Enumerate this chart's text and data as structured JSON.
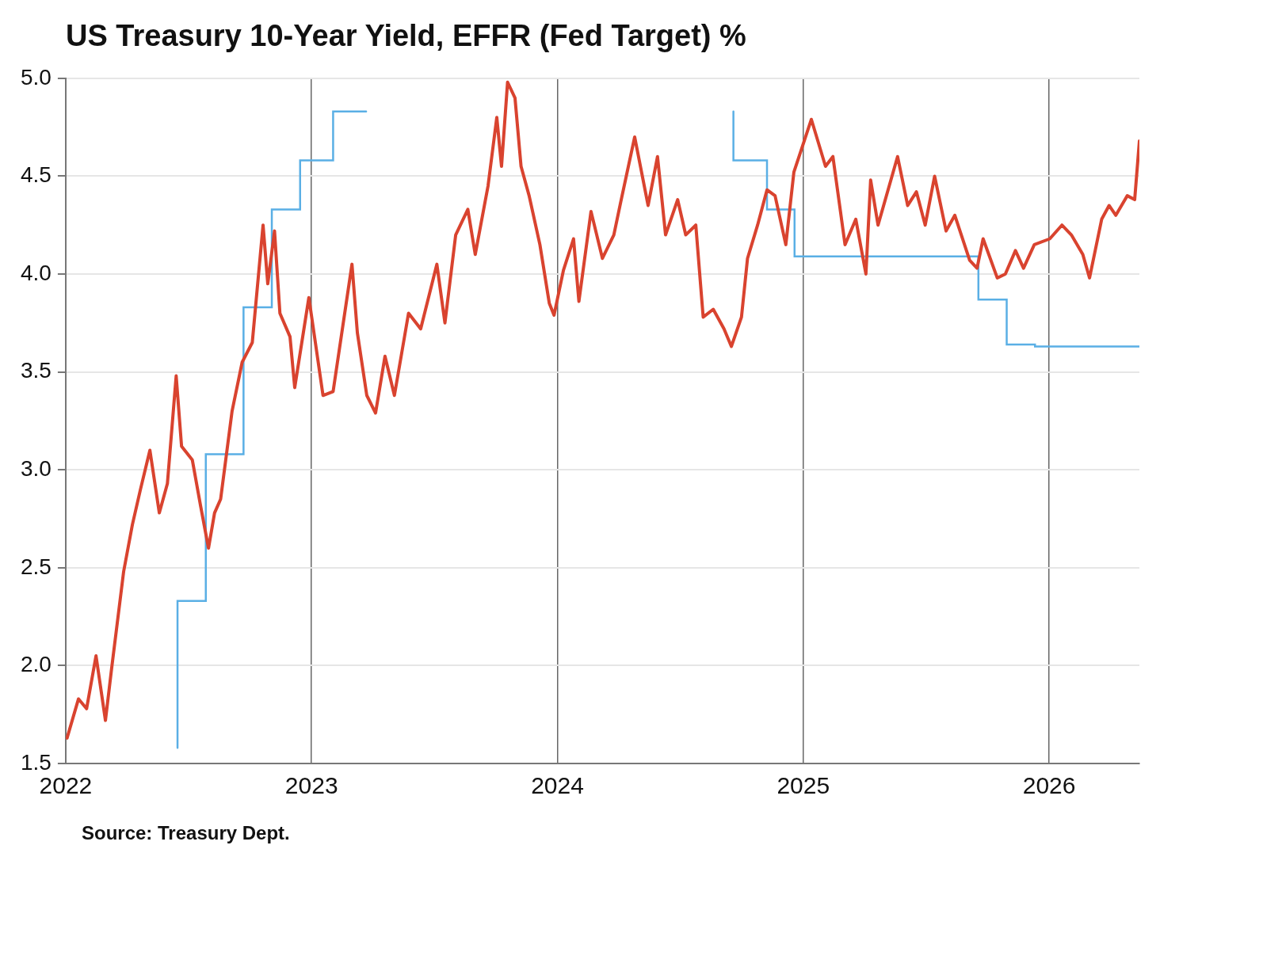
{
  "chart_data": {
    "type": "line",
    "title": "US Treasury 10-Year Yield, EFFR (Fed Target) %",
    "xlim": [
      "2022",
      "2026-05-15"
    ],
    "xticks": [
      "2022",
      "2023",
      "2024",
      "2025",
      "2026"
    ],
    "ylim": [
      1.5,
      5.0
    ],
    "yticks": [
      {
        "value": 1.5,
        "label": "1.5"
      },
      {
        "value": 2,
        "label": "2.0"
      },
      {
        "value": 2.5,
        "label": "2.5"
      },
      {
        "value": 3,
        "label": "3.0"
      },
      {
        "value": 3.5,
        "label": "3.5"
      },
      {
        "value": 4,
        "label": "4.0"
      },
      {
        "value": 4.5,
        "label": "4.5"
      },
      {
        "value": 5,
        "label": "5.0"
      }
    ],
    "grid": true,
    "legend": false,
    "marker": "none",
    "line_style": "solid",
    "annotations": [
      "Source: Treasury Dept."
    ],
    "series": [
      {
        "type": "line",
        "color": "#d9432f",
        "x": [
          "2022-01-03",
          "2022-01-20",
          "2022-02-01",
          "2022-02-15",
          "2022-03-01",
          "2022-03-10",
          "2022-03-28",
          "2022-04-10",
          "2022-04-22",
          "2022-05-06",
          "2022-05-20",
          "2022-06-01",
          "2022-06-14",
          "2022-06-22",
          "2022-07-08",
          "2022-07-20",
          "2022-08-01",
          "2022-08-10",
          "2022-08-19",
          "2022-09-05",
          "2022-09-20",
          "2022-10-05",
          "2022-10-21",
          "2022-10-28",
          "2022-11-07",
          "2022-11-15",
          "2022-11-30",
          "2022-12-07",
          "2022-12-28",
          "2023-01-18",
          "2023-02-02",
          "2023-03-02",
          "2023-03-10",
          "2023-03-24",
          "2023-04-06",
          "2023-04-20",
          "2023-05-04",
          "2023-05-25",
          "2023-06-12",
          "2023-07-06",
          "2023-07-18",
          "2023-08-03",
          "2023-08-21",
          "2023-09-01",
          "2023-09-20",
          "2023-10-03",
          "2023-10-10",
          "2023-10-19",
          "2023-10-30",
          "2023-11-08",
          "2023-11-20",
          "2023-12-06",
          "2023-12-20",
          "2023-12-27",
          "2024-01-10",
          "2024-01-25",
          "2024-02-02",
          "2024-02-20",
          "2024-03-08",
          "2024-03-25",
          "2024-04-05",
          "2024-04-25",
          "2024-05-15",
          "2024-05-29",
          "2024-06-10",
          "2024-06-28",
          "2024-07-10",
          "2024-07-25",
          "2024-08-05",
          "2024-08-20",
          "2024-09-05",
          "2024-09-16",
          "2024-10-01",
          "2024-10-10",
          "2024-10-25",
          "2024-11-08",
          "2024-11-20",
          "2024-12-06",
          "2024-12-18",
          "2025-01-13",
          "2025-02-03",
          "2025-02-14",
          "2025-03-04",
          "2025-03-20",
          "2025-04-04",
          "2025-04-11",
          "2025-04-22",
          "2025-05-21",
          "2025-06-05",
          "2025-06-18",
          "2025-07-01",
          "2025-07-15",
          "2025-08-01",
          "2025-08-14",
          "2025-09-05",
          "2025-09-16",
          "2025-09-25",
          "2025-10-16",
          "2025-10-28",
          "2025-11-12",
          "2025-11-24",
          "2025-12-10",
          "2026-01-02",
          "2026-01-20",
          "2026-02-03",
          "2026-02-20",
          "2026-03-02",
          "2026-03-20",
          "2026-03-31",
          "2026-04-10",
          "2026-04-27",
          "2026-05-08",
          "2026-05-15"
        ],
        "values": [
          1.63,
          1.83,
          1.78,
          2.05,
          1.72,
          1.98,
          2.48,
          2.72,
          2.9,
          3.1,
          2.78,
          2.93,
          3.48,
          3.12,
          3.05,
          2.82,
          2.6,
          2.78,
          2.85,
          3.3,
          3.55,
          3.65,
          4.25,
          3.95,
          4.22,
          3.8,
          3.68,
          3.42,
          3.88,
          3.38,
          3.4,
          4.05,
          3.7,
          3.38,
          3.29,
          3.58,
          3.38,
          3.8,
          3.72,
          4.05,
          3.75,
          4.2,
          4.33,
          4.1,
          4.45,
          4.8,
          4.55,
          4.98,
          4.9,
          4.55,
          4.4,
          4.15,
          3.85,
          3.79,
          4.02,
          4.18,
          3.86,
          4.32,
          4.08,
          4.2,
          4.38,
          4.7,
          4.35,
          4.6,
          4.2,
          4.38,
          4.2,
          4.25,
          3.78,
          3.82,
          3.72,
          3.63,
          3.78,
          4.08,
          4.25,
          4.43,
          4.4,
          4.15,
          4.52,
          4.79,
          4.55,
          4.6,
          4.15,
          4.28,
          4.0,
          4.48,
          4.25,
          4.6,
          4.35,
          4.42,
          4.25,
          4.5,
          4.22,
          4.3,
          4.07,
          4.03,
          4.18,
          3.98,
          4.0,
          4.12,
          4.03,
          4.15,
          4.18,
          4.25,
          4.2,
          4.1,
          3.98,
          4.28,
          4.35,
          4.3,
          4.4,
          4.38,
          4.68
        ]
      },
      {
        "type": "step",
        "color": "#5aafe5",
        "x": [
          "2022-06-16",
          "2022-07-28",
          "2022-09-22",
          "2022-11-03",
          "2022-12-15",
          "2023-02-02",
          "2023-03-23",
          "2023-05-04",
          "2024-09-19",
          "2024-11-08",
          "2024-12-19",
          "2025-09-18",
          "2025-10-30",
          "2025-12-11",
          "2026-04-20",
          "2026-05-15"
        ],
        "values": [
          1.58,
          2.33,
          3.08,
          3.83,
          4.33,
          4.58,
          4.83,
          null,
          4.83,
          4.58,
          4.33,
          4.09,
          3.87,
          3.64,
          3.63,
          3.63
        ]
      }
    ]
  }
}
